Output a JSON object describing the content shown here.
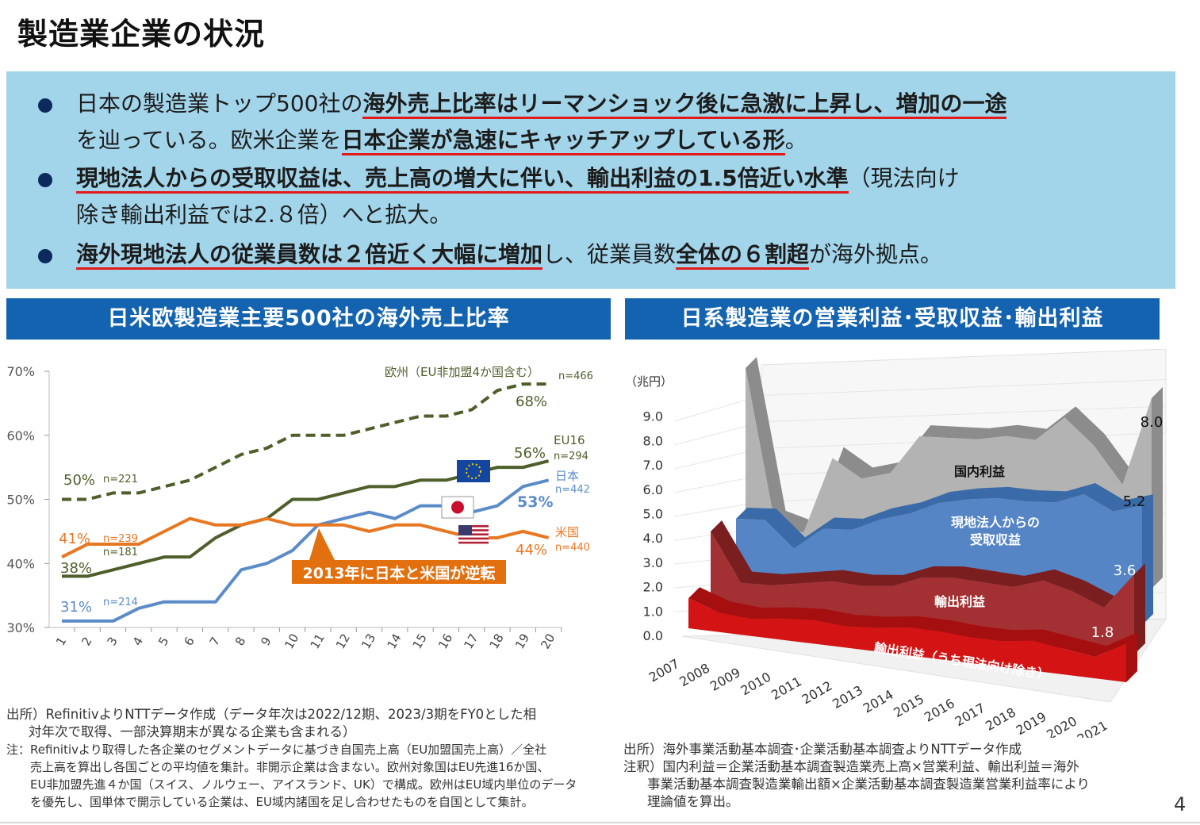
{
  "page": {
    "title": "製造業企業の状況",
    "page_number": "4"
  },
  "summary": {
    "b1": {
      "t1": "日本の製造業トップ500社の",
      "u1": "海外売上比率はリーマンショック後に急激に上昇し、増加の一途",
      "t2": "を辿っている。欧米企業を",
      "u2": "日本企業が急速にキャッチアップしている形",
      "t3": "。"
    },
    "b2": {
      "u1": "現地法人からの受取収益は、売上高の増大に伴い、輸出利益の1.5倍近い水準",
      "t1": "（現法向け",
      "t2": "除き輸出利益では2.８倍）へと拡大。"
    },
    "b3": {
      "u1": "海外現地法人の従業員数は２倍近く大幅に増加",
      "t1": "し、従業員数",
      "u2": "全体の６割超",
      "t2": "が海外拠点。"
    }
  },
  "left_panel": {
    "header": "日米欧製造業主要500社の海外売上比率",
    "source_notes": [
      "出所）RefinitivよりNTTデータ作成（データ年次は2022/12期、2023/3期をFY0とした相",
      "対年次で取得、一部決算期末が異なる企業も含まれる）",
      "注：Refinitivより取得した各企業のセグメントデータに基づき自国売上高（EU加盟国売上高）／全社",
      "売上高を算出し各国ごとの平均値を集計。非開示企業は含まない。欧州対象国はEU先進16か国、",
      "EU非加盟先進４か国（スイス、ノルウェー、アイスランド、UK）で構成。欧州はEU域内単位のデータ",
      "を優先し、国単体で開示している企業は、EU域内諸国を足し合わせたものを自国として集計。"
    ]
  },
  "right_panel": {
    "header": "日系製造業の営業利益･受取収益･輸出利益",
    "source_notes": [
      "出所）海外事業活動基本調査･企業活動基本調査よりNTTデータ作成",
      "注釈）国内利益＝企業活動基本調査製造業売上高×営業利益、輸出利益＝海外",
      "事業活動基本調査製造業輸出額×企業活動基本調査製造業営業利益率により",
      "理論値を算出。"
    ]
  },
  "colors": {
    "europe": "#4e5f2b",
    "eu16": "#4e5f2b",
    "japan": "#5b8cc8",
    "usa": "#e87722",
    "callout": "#e2700e",
    "domestic": "#b3b3b3",
    "local": "#5585c5",
    "export": "#a33032",
    "export_ex": "#d41414",
    "header_bg": "#1363b1",
    "summary_bg": "#a2d4ea"
  },
  "chart_data": [
    {
      "type": "line",
      "x": [
        1,
        2,
        3,
        4,
        5,
        6,
        7,
        8,
        9,
        10,
        11,
        12,
        13,
        14,
        15,
        16,
        17,
        18,
        19,
        20
      ],
      "ylim": [
        30,
        70
      ],
      "yticks": [
        "30%",
        "40%",
        "50%",
        "60%",
        "70%"
      ],
      "series": [
        {
          "name": "欧州（EU非加盟4か国含む）",
          "n_label": "n=466",
          "start_n_label": "n=221",
          "start_label": "50%",
          "end_label": "68%",
          "style": "dashed",
          "color": "#4e5f2b",
          "values": [
            50,
            50,
            51,
            51,
            52,
            53,
            55,
            57,
            58,
            60,
            60,
            60,
            61,
            62,
            63,
            63,
            64,
            67,
            68,
            68
          ]
        },
        {
          "name": "EU16",
          "n_label": "n=294",
          "start_n_label": "n=181",
          "start_label": "38%",
          "end_label": "56%",
          "style": "solid",
          "color": "#4e5f2b",
          "values": [
            38,
            38,
            39,
            40,
            41,
            41,
            44,
            46,
            47,
            50,
            50,
            51,
            52,
            52,
            53,
            53,
            54,
            55,
            55,
            56
          ]
        },
        {
          "name": "日本",
          "n_label": "n=442",
          "start_n_label": "n=214",
          "start_label": "31%",
          "end_label": "53%",
          "style": "solid",
          "color": "#5b8cc8",
          "values": [
            31,
            31,
            31,
            33,
            34,
            34,
            34,
            39,
            40,
            42,
            46,
            47,
            48,
            47,
            49,
            49,
            48,
            49,
            52,
            53
          ]
        },
        {
          "name": "米国",
          "n_label": "n=440",
          "start_n_label": "n=239",
          "start_label": "41%",
          "end_label": "44%",
          "style": "solid",
          "color": "#e87722",
          "values": [
            41,
            43,
            43,
            43,
            45,
            47,
            46,
            46,
            47,
            46,
            46,
            46,
            45,
            46,
            46,
            45,
            44,
            44,
            45,
            44
          ]
        }
      ],
      "annotations": [
        "2013年に日本と米国が逆転"
      ]
    },
    {
      "type": "area",
      "categories": [
        "2007",
        "2008",
        "2009",
        "2010",
        "2011",
        "2012",
        "2013",
        "2014",
        "2015",
        "2016",
        "2017",
        "2018",
        "2019",
        "2020",
        "2021"
      ],
      "y_unit": "（兆円）",
      "ylim": [
        0,
        9
      ],
      "yticks": [
        "0.0",
        "1.0",
        "2.0",
        "3.0",
        "4.0",
        "5.0",
        "6.0",
        "7.0",
        "8.0",
        "9.0"
      ],
      "series": [
        {
          "name": "国内利益",
          "end_label": "8.0",
          "values": [
            9.8,
            3.3,
            2.8,
            5.9,
            5.0,
            5.2,
            6.7,
            6.6,
            6.5,
            6.6,
            6.4,
            7.3,
            6.1,
            4.4,
            8.0
          ]
        },
        {
          "name": "現地法人からの受取収益",
          "end_label": "5.2",
          "values": [
            4.0,
            4.0,
            2.8,
            3.7,
            3.7,
            4.2,
            4.5,
            5.0,
            5.2,
            5.3,
            5.2,
            5.2,
            5.6,
            4.9,
            5.2
          ]
        },
        {
          "name": "輸出利益",
          "end_label": "3.6",
          "values": [
            4.0,
            1.8,
            1.8,
            2.0,
            2.2,
            2.1,
            2.2,
            2.7,
            2.8,
            2.7,
            2.6,
            3.0,
            2.6,
            2.0,
            3.6
          ]
        },
        {
          "name": "輸出利益（うち現法向け除き）",
          "end_label": "1.8",
          "values": [
            1.4,
            0.9,
            0.8,
            1.0,
            1.1,
            1.0,
            1.1,
            1.3,
            1.3,
            1.2,
            1.2,
            1.4,
            1.2,
            1.0,
            1.8
          ]
        }
      ]
    }
  ]
}
